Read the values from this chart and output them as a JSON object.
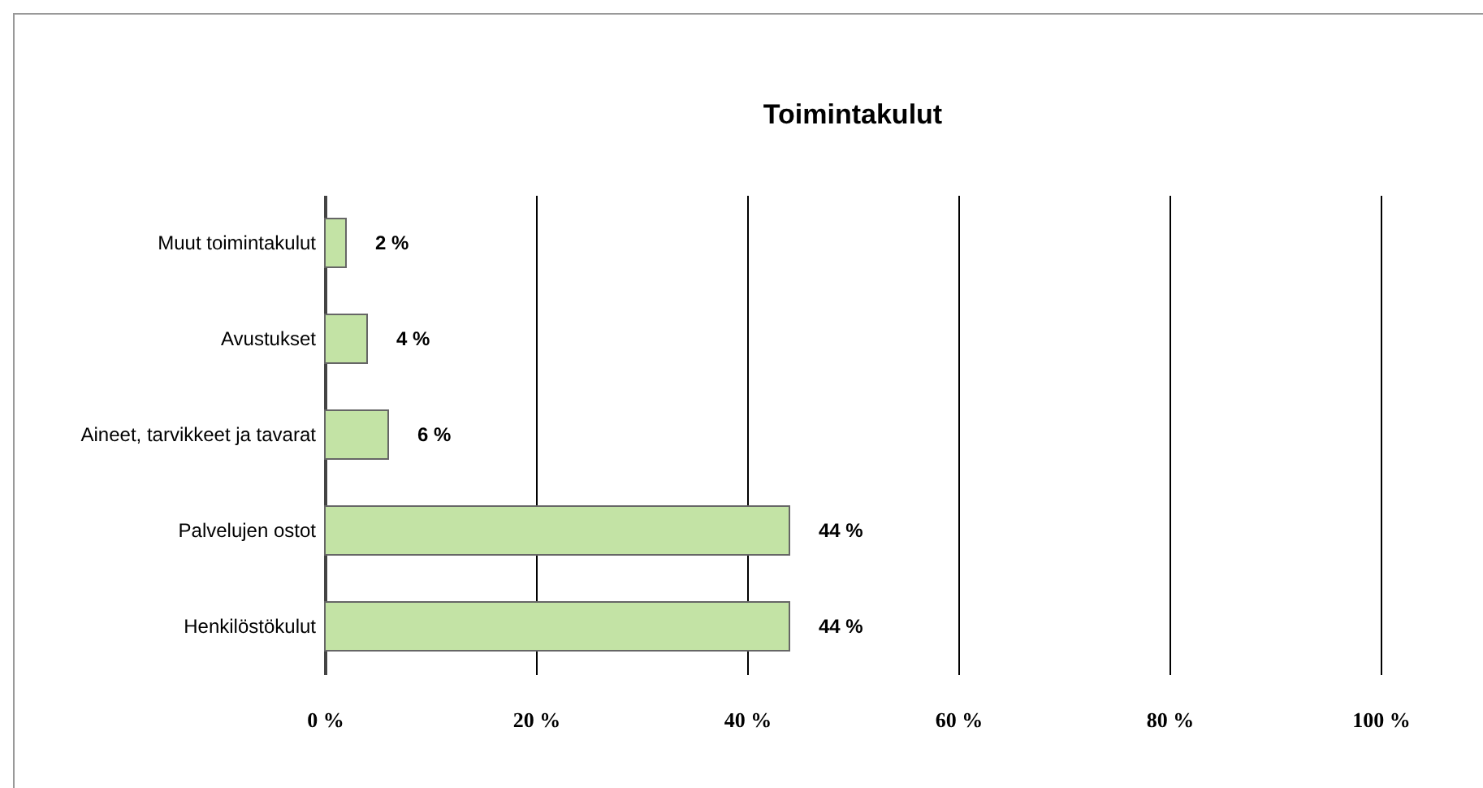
{
  "chart_data": {
    "type": "bar",
    "orientation": "horizontal",
    "title": "Toimintakulut",
    "categories": [
      "Muut toimintakulut",
      "Avustukset",
      "Aineet, tarvikkeet ja tavarat",
      "Palvelujen ostot",
      "Henkilöstökulut"
    ],
    "values": [
      2,
      4,
      6,
      44,
      44
    ],
    "value_labels": [
      "2 %",
      "4 %",
      "6 %",
      "44 %",
      "44 %"
    ],
    "color": "#c3e3a5",
    "xlim": [
      0,
      100
    ],
    "xticks": [
      {
        "value": 0,
        "label": "0 %"
      },
      {
        "value": 20,
        "label": "20 %"
      },
      {
        "value": 40,
        "label": "40 %"
      },
      {
        "value": 60,
        "label": "60 %"
      },
      {
        "value": 80,
        "label": "80 %"
      },
      {
        "value": 100,
        "label": "100 %"
      }
    ],
    "grid": "x"
  }
}
